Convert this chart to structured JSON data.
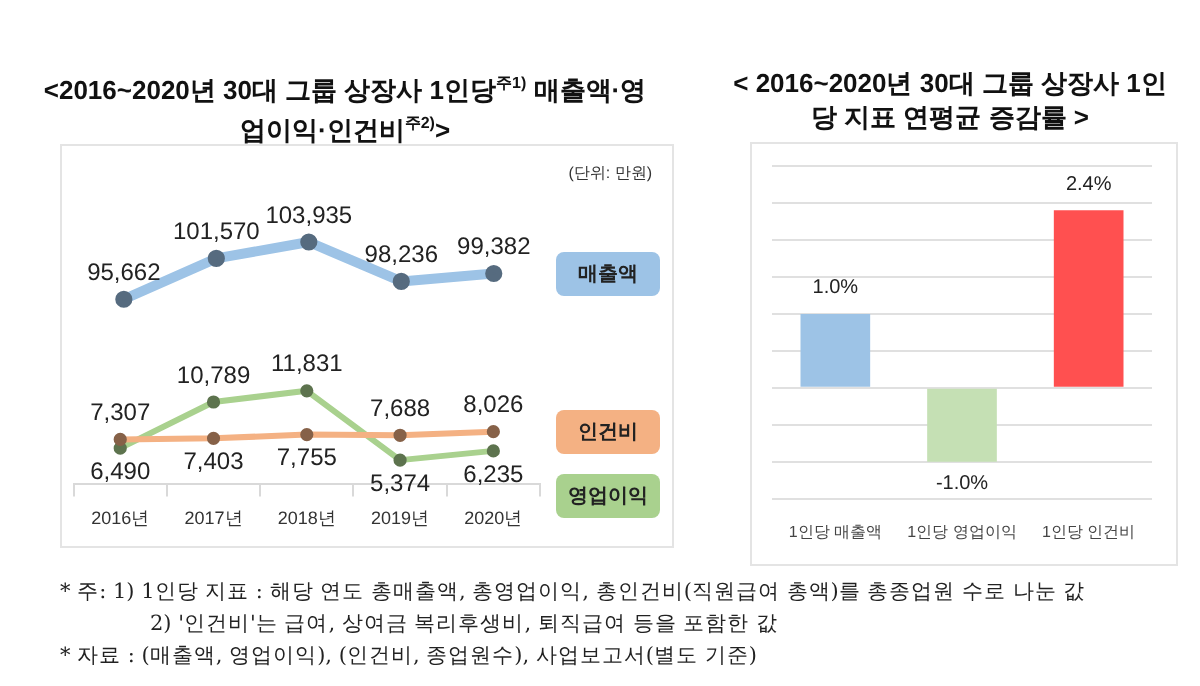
{
  "chart_data": [
    {
      "type": "line",
      "title": "<2016~2020년 30대 그룹 상장사 1인당$^{주1)}$ 매출액·영업이익·인건비$^{주2)}$>",
      "categories": [
        null,
        null,
        null,
        null,
        null
      ],
      "series": [
        {
          "name": "매출액",
          "color": "#9dc3e6",
          "values": [
            95662,
            101570,
            103935,
            98236,
            99382
          ],
          "value_labels": [
            "95,662",
            "101,570",
            "103,935",
            "98,236",
            "99,382"
          ]
        }
      ],
      "tick_labels": false,
      "legend": "right",
      "marker": "circle",
      "annotations": [
        "(단위: 만원)"
      ]
    },
    {
      "type": "line",
      "categories": [
        "2016년",
        "2017년",
        "2018년",
        "2019년",
        "2020년"
      ],
      "series": [
        {
          "name": "인건비",
          "color": "#f4b183",
          "values": [
            7307,
            7403,
            7755,
            7688,
            8026
          ],
          "value_labels": [
            "7,307",
            "7,403",
            "7,755",
            "7,688",
            "8,026"
          ]
        },
        {
          "name": "영업이익",
          "color": "#a9d18e",
          "values": [
            6490,
            10789,
            11831,
            5374,
            6235
          ],
          "value_labels": [
            "6,490",
            "10,789",
            "11,831",
            "5,374",
            "6,235"
          ]
        }
      ],
      "tick_labels": "x",
      "legend": "right",
      "marker": "circle"
    },
    {
      "type": "bar",
      "title": "< 2016~2020년 30대 그룹 상장사 1인당 지표 연평균 증감률 >",
      "categories": [
        "1인당 매출액",
        "1인당 영업이익",
        "1인당 인건비"
      ],
      "values": [
        1.0,
        -1.0,
        2.4
      ],
      "colors": [
        "#9dc3e6",
        "#c5e0b4",
        "#ff5050"
      ],
      "value_labels": [
        "1.0%",
        "-1.0%",
        "2.4%"
      ],
      "ylim": [
        -1.5,
        3.0
      ],
      "yticks": [
        {
          "value": -1.5,
          "label": null
        },
        {
          "value": -1.0,
          "label": null
        },
        {
          "value": -0.5,
          "label": null
        },
        {
          "value": 0,
          "label": null
        },
        {
          "value": 0.5,
          "label": null
        },
        {
          "value": 1.0,
          "label": null
        },
        {
          "value": 1.5,
          "label": null
        },
        {
          "value": 2.0,
          "label": null
        },
        {
          "value": 2.5,
          "label": null
        },
        {
          "value": 3.0,
          "label": null
        }
      ],
      "tick_labels": "x",
      "grid": "y",
      "annotations": [
        "* 주: 1) 1인당 지표 : 해당 연도 총매출액, 총영업이익, 총인건비(직원급여 총액)를 총종업원 수로 나눈 값",
        "2) '인건비'는 급여, 상여금 복리후생비, 퇴직급여 등을 포함한 값",
        "* 자료 : (매출액, 영업이익), (인건비, 종업원수), 사업보고서(별도 기준)"
      ]
    }
  ]
}
